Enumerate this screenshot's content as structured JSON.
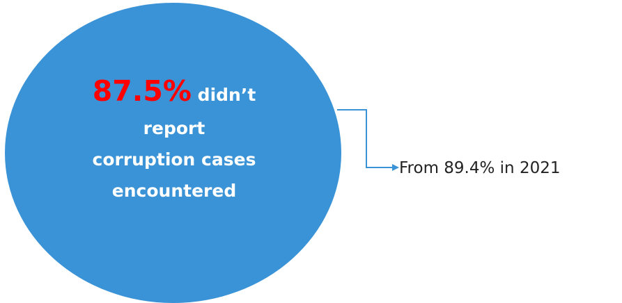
{
  "circle": {
    "fill": "#3a93d6",
    "headline_value": "87.5%",
    "headline_value_color": "#ff0000",
    "headline_rest": "didn’t",
    "line2": "report",
    "line3": "corruption cases",
    "line4": "encountered"
  },
  "callout": {
    "text": "From 89.4% in 2021",
    "connector_color": "#3a93d6"
  }
}
